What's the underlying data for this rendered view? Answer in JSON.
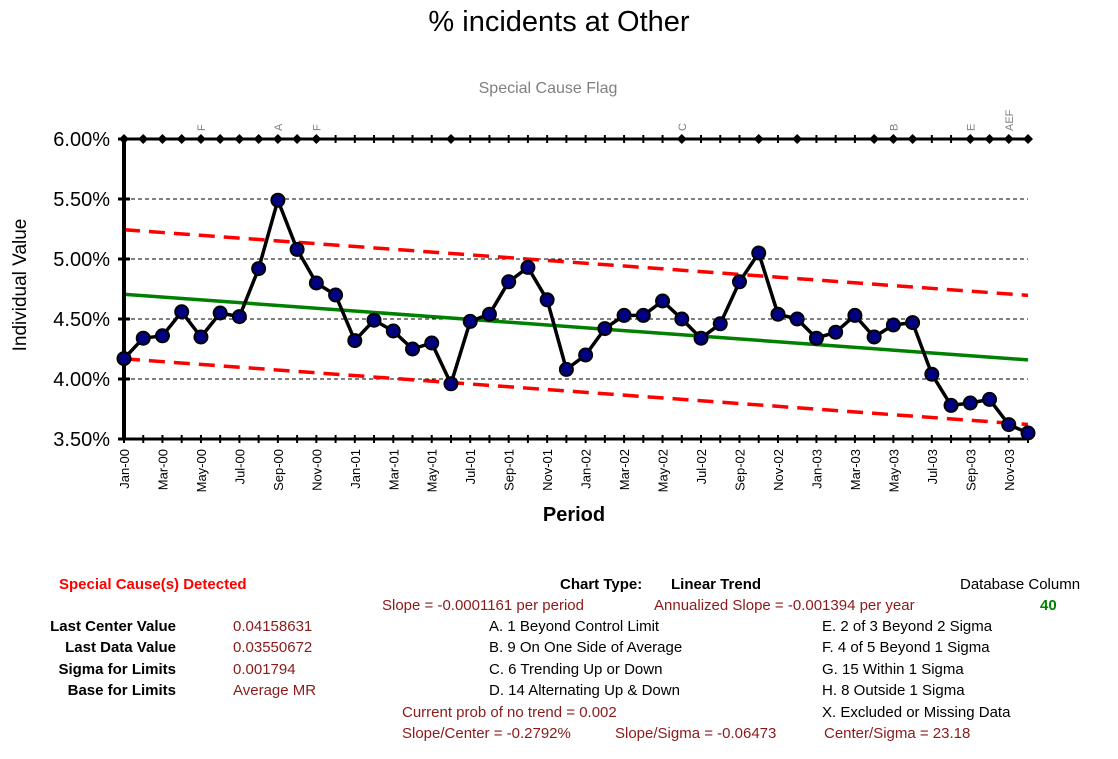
{
  "chart_data": {
    "type": "line",
    "title": "% incidents at Other",
    "subtitle": "Special Cause Flag",
    "xlabel": "Period",
    "ylabel": "Individual Value",
    "ylim": [
      0.035,
      0.06
    ],
    "y_ticks": [
      "3.50%",
      "4.00%",
      "4.50%",
      "5.00%",
      "5.50%",
      "6.00%"
    ],
    "y_tick_values": [
      0.035,
      0.04,
      0.045,
      0.05,
      0.055,
      0.06
    ],
    "x_tick_labels": [
      "Jan-00",
      "Mar-00",
      "May-00",
      "Jul-00",
      "Sep-00",
      "Nov-00",
      "Jan-01",
      "Mar-01",
      "May-01",
      "Jul-01",
      "Sep-01",
      "Nov-01",
      "Jan-02",
      "Mar-02",
      "May-02",
      "Jul-02",
      "Sep-02",
      "Nov-02",
      "Jan-03",
      "Mar-03",
      "May-03",
      "Jul-03",
      "Sep-03",
      "Nov-03"
    ],
    "grid": true,
    "series": [
      {
        "values": [
          0.0417,
          0.0434,
          0.0436,
          0.0456,
          0.0435,
          0.0455,
          0.0452,
          0.0492,
          0.0549,
          0.0508,
          0.048,
          0.047,
          0.0432,
          0.0449,
          0.044,
          0.0425,
          0.043,
          0.0396,
          0.0448,
          0.0454,
          0.0481,
          0.0493,
          0.0466,
          0.0408,
          0.042,
          0.0442,
          0.0453,
          0.0453,
          0.0465,
          0.045,
          0.0434,
          0.0446,
          0.0481,
          0.0505,
          0.0454,
          0.045,
          0.0434,
          0.0439,
          0.0453,
          0.0435,
          0.0445,
          0.0447,
          0.0404,
          0.0378,
          0.038,
          0.0383,
          0.0362,
          0.0355
        ]
      }
    ],
    "center_line": [
      0.04706,
      0.04159
    ],
    "upper_limit": [
      0.05244,
      0.04697
    ],
    "lower_limit": [
      0.04168,
      0.03621
    ],
    "flags": [
      {
        "index": 4,
        "label": "F"
      },
      {
        "index": 8,
        "label": "A"
      },
      {
        "index": 10,
        "label": "F"
      },
      {
        "index": 29,
        "label": "C"
      },
      {
        "index": 40,
        "label": "B"
      },
      {
        "index": 44,
        "label": "E"
      },
      {
        "index": 46,
        "label": "AEF"
      }
    ],
    "top_markers": [
      0,
      1,
      2,
      3,
      4,
      5,
      6,
      7,
      8,
      9,
      10,
      17,
      29,
      33,
      35,
      39,
      40,
      41,
      44,
      45,
      46,
      47
    ]
  },
  "summary": {
    "special_cause": "Special Cause(s) Detected",
    "chart_type_label": "Chart Type:",
    "chart_type_value": "Linear Trend",
    "db_column_label": "Database Column",
    "db_column_value": "40",
    "slope": "Slope = -0.0001161 per period",
    "annualized": "Annualized Slope = -0.001394 per year",
    "stats": [
      {
        "label": "Last Center Value",
        "value": "0.04158631"
      },
      {
        "label": "Last Data Value",
        "value": "0.03550672"
      },
      {
        "label": "Sigma for Limits",
        "value": "0.001794"
      },
      {
        "label": "Base for Limits",
        "value": "Average MR"
      }
    ],
    "rules_left": [
      "A.  1 Beyond Control Limit",
      "B.  9 On One Side of Average",
      "C.  6 Trending Up or Down",
      "D.  14 Alternating  Up & Down"
    ],
    "rules_right": [
      "E.   2 of 3 Beyond 2 Sigma",
      "F.   4 of 5 Beyond 1 Sigma",
      "G.   15 Within 1 Sigma",
      "H.   8 Outside 1 Sigma",
      "X.   Excluded or Missing Data"
    ],
    "prob_no_trend": "Current prob of no trend = 0.002",
    "slope_center": "Slope/Center = -0.2792%",
    "slope_sigma": "Slope/Sigma = -0.06473",
    "center_sigma": "Center/Sigma = 23.18"
  },
  "colors": {
    "data_line": "#000000",
    "marker_fill": "#000080",
    "center_line": "#008000",
    "limits": "#ff0000",
    "flag_text": "#808080",
    "stat_value": "#8b1a1a",
    "db_value": "#008000"
  }
}
